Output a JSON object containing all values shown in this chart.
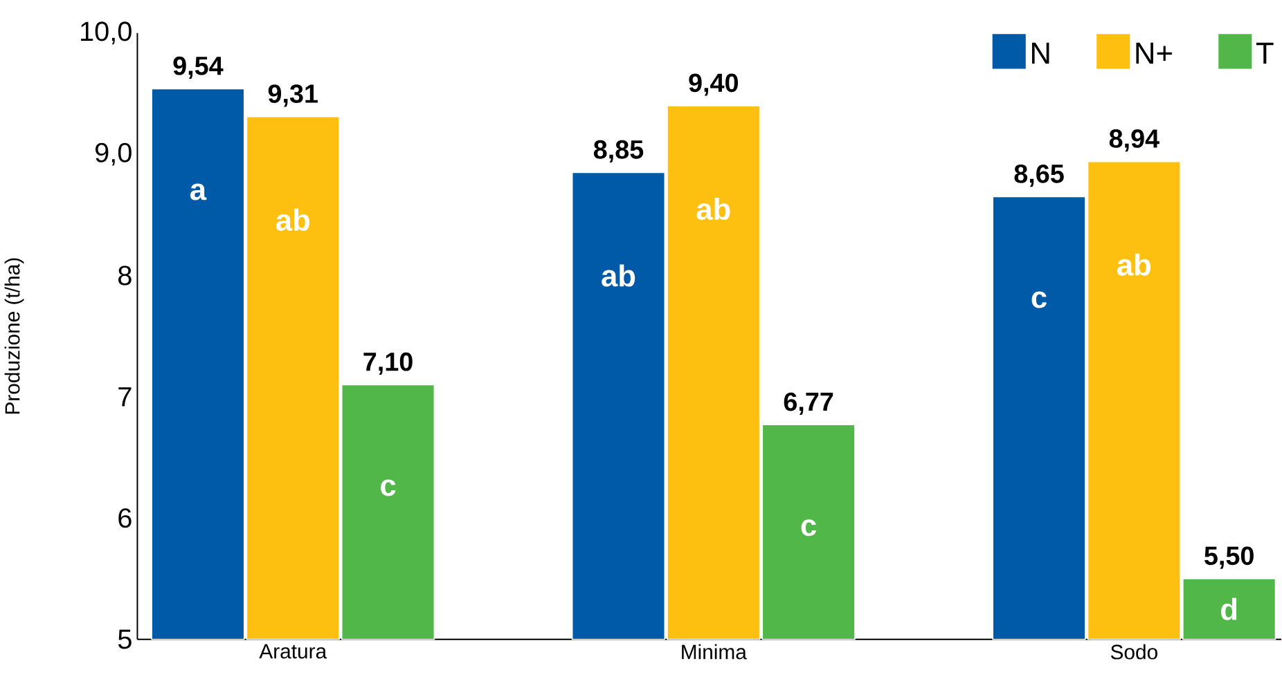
{
  "chart_data": {
    "type": "bar",
    "ylabel": "Produzione (t/ha)",
    "categories": [
      "Aratura",
      "Minima",
      "Sodo"
    ],
    "series": [
      {
        "name": "N",
        "color": "#005aa8",
        "values": [
          9.54,
          8.85,
          8.65
        ],
        "value_labels": [
          "9,54",
          "8,85",
          "8,65"
        ]
      },
      {
        "name": "N+",
        "color": "#fdc010",
        "values": [
          9.31,
          9.4,
          8.94
        ],
        "value_labels": [
          "9,31",
          "9,40",
          "8,94"
        ]
      },
      {
        "name": "T",
        "color": "#50b748",
        "values": [
          7.1,
          6.77,
          5.5
        ],
        "value_labels": [
          "7,10",
          "6,77",
          "5,50"
        ]
      }
    ],
    "ylim": [
      5,
      10
    ],
    "yticks": [
      5,
      6,
      7,
      8,
      {
        "value": 9,
        "label": "9,0"
      },
      {
        "value": 10,
        "label": "10,0"
      }
    ],
    "annotations": [
      "a",
      "ab",
      "c",
      "ab",
      "ab",
      "c",
      "c",
      "ab",
      "d"
    ],
    "grid": false,
    "legend": "top right"
  }
}
